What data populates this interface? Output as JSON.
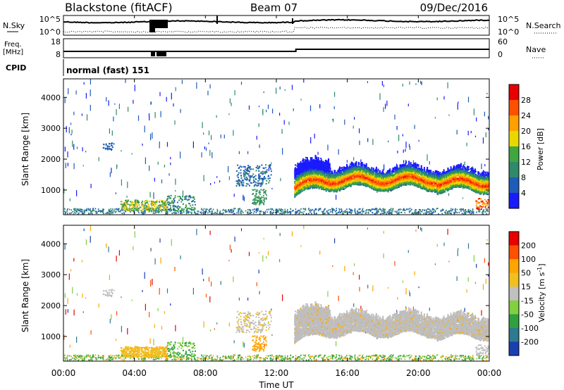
{
  "header": {
    "radar": "Blackstone (fitACF)",
    "beam": "Beam 07",
    "date": "09/Dec/2016"
  },
  "panels": {
    "nsky": {
      "label": "N.Sky",
      "ticks": [
        "10^5",
        "10^0"
      ],
      "right_label": "N.Search",
      "right_ticks": [
        "10^5",
        "10^0"
      ]
    },
    "freq": {
      "label_line1": "Freq.",
      "label_line2": "[MHz]",
      "ticks": [
        "18",
        "8"
      ],
      "right_label": "Nave",
      "right_ticks": [
        "60",
        "0"
      ]
    },
    "cpid": {
      "label": "CPID",
      "text": "normal (fast) 151"
    }
  },
  "colors": {
    "power": [
      "#1a1aff",
      "#1e5cb8",
      "#2e8a6a",
      "#3fa640",
      "#e8d800",
      "#ff9f00",
      "#ff5000",
      "#e80000"
    ],
    "velocity": [
      "#e80000",
      "#ff5000",
      "#ffa500",
      "#f0c020",
      "#c0c0c0",
      "#80d040",
      "#30a040",
      "#2e7a90",
      "#1a3fb0"
    ],
    "ground_scatter": "#bebebe"
  },
  "chart_data": [
    {
      "type": "heatmap",
      "name": "power",
      "ylabel": "Slant Range [km]",
      "yticks": [
        "1000",
        "2000",
        "3000",
        "4000"
      ],
      "ylim": [
        200,
        4600
      ],
      "xlim_hours": [
        0,
        24
      ],
      "colorbar_label": "Power [dB]",
      "colorbar_ticks": [
        "4",
        "8",
        "12",
        "16",
        "20",
        "24",
        "28"
      ],
      "colorbar_range": [
        0,
        32
      ]
    },
    {
      "type": "heatmap",
      "name": "velocity",
      "ylabel": "Slant Range [km]",
      "yticks": [
        "1000",
        "2000",
        "3000",
        "4000"
      ],
      "ylim": [
        200,
        4600
      ],
      "xlim_hours": [
        0,
        24
      ],
      "colorbar_label": "Velocity [m s^-1]",
      "colorbar_ticks": [
        "200",
        "100",
        "50",
        "15",
        "-15",
        "-50",
        "-100",
        "-200"
      ],
      "xticks": [
        "00:00",
        "04:00",
        "08:00",
        "12:00",
        "16:00",
        "20:00",
        "00:00"
      ],
      "xlabel": "Time UT"
    }
  ]
}
